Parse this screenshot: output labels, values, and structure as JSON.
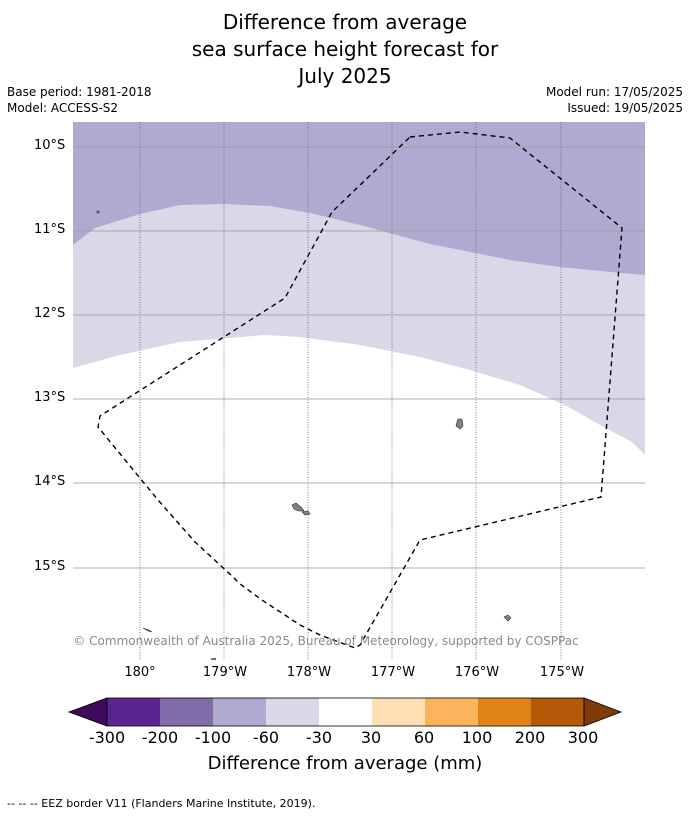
{
  "title": {
    "line1": "Difference from average",
    "line2": "sea surface height forecast for",
    "line3": "July 2025"
  },
  "meta": {
    "base_period": "Base period: 1981-2018",
    "model": "Model: ACCESS-S2",
    "model_run": "Model run: 17/05/2025",
    "issued": "Issued: 19/05/2025"
  },
  "map": {
    "latitude_labels": [
      "10°S",
      "11°S",
      "12°S",
      "13°S",
      "14°S",
      "15°S"
    ],
    "longitude_labels": [
      "180°",
      "179°W",
      "178°W",
      "177°W",
      "176°W",
      "175°W"
    ],
    "attribution": "© Commonwealth of Australia 2025, Bureau of Meteorology, supported by COSPPac",
    "colors": {
      "band_-100_-60": "#b0aad1",
      "band_-60_-30": "#d8d8e8",
      "band_-30_30": "#ffffff",
      "eez_line": "#000000",
      "land": "#808080"
    }
  },
  "colorbar": {
    "ticks": [
      "-300",
      "-200",
      "-100",
      "-60",
      "-30",
      "30",
      "60",
      "100",
      "200",
      "300"
    ],
    "colors": [
      "#3f0a5c",
      "#5b2590",
      "#7f6eab",
      "#b0aad1",
      "#d8d8e8",
      "#ffffff",
      "#ffdfb2",
      "#fbb35e",
      "#e08214",
      "#b35806",
      "#7f3b08"
    ],
    "title": "Difference from average (mm)"
  },
  "footer": {
    "legend_text": "--  --  -- EEZ border V11 (Flanders Marine Institute, 2019)."
  }
}
